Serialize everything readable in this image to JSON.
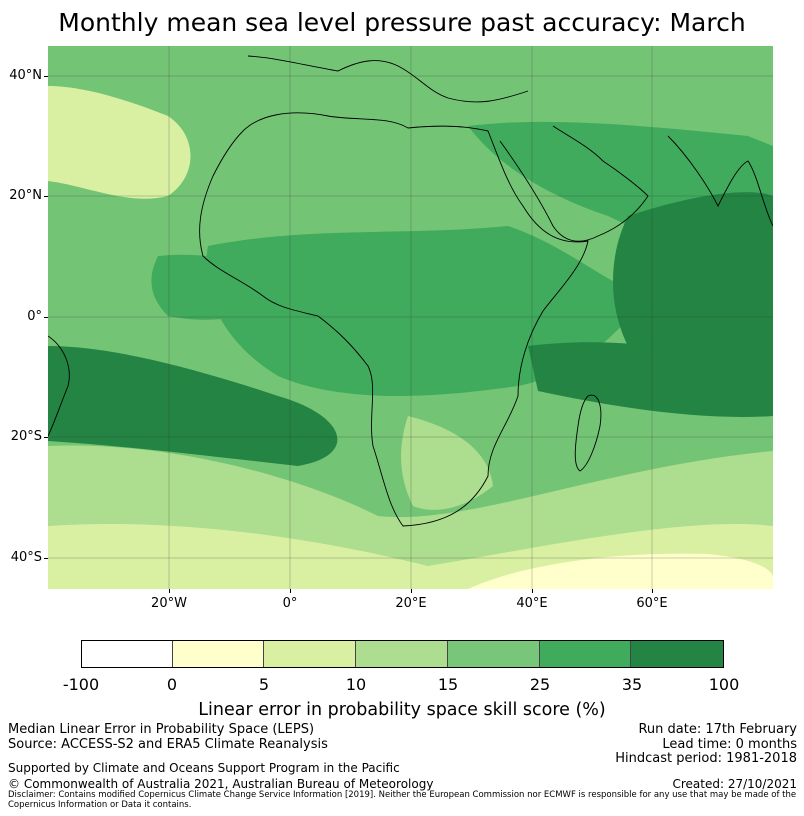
{
  "title": "Monthly mean sea level pressure past accuracy: March",
  "map": {
    "lat_labels": [
      "40°N",
      "20°N",
      "0°",
      "20°S",
      "40°S"
    ],
    "lon_labels": [
      "20°W",
      "0°",
      "20°E",
      "40°E",
      "60°E"
    ]
  },
  "colorbar": {
    "title": "Linear error in probability space skill score (%)",
    "tick_labels": [
      "-100",
      "0",
      "5",
      "10",
      "15",
      "25",
      "35",
      "100"
    ],
    "colors": [
      "#ffffff",
      "#ffffcc",
      "#d9f0a3",
      "#addd8e",
      "#78c679",
      "#41ab5d",
      "#238443"
    ]
  },
  "info": {
    "left_line1": "Median Linear Error in Probability Space (LEPS)",
    "left_line2": "Source: ACCESS-S2 and ERA5 Climate Reanalysis",
    "support": "Supported by Climate and Oceans Support Program in the Pacific",
    "copyright": "© Commonwealth of Australia 2021, Australian Bureau of Meteorology",
    "run_date": "Run date: 17th February",
    "lead_time": "Lead time: 0 months",
    "hindcast": "Hindcast period: 1981-2018",
    "created": "Created: 27/10/2021",
    "disclaimer": "Disclaimer: Contains modified Copernicus Climate Change Service Information [2019]. Neither the European Commission nor ECMWF is responsible for any use that may be made of the Copernicus Information or Data it contains."
  }
}
